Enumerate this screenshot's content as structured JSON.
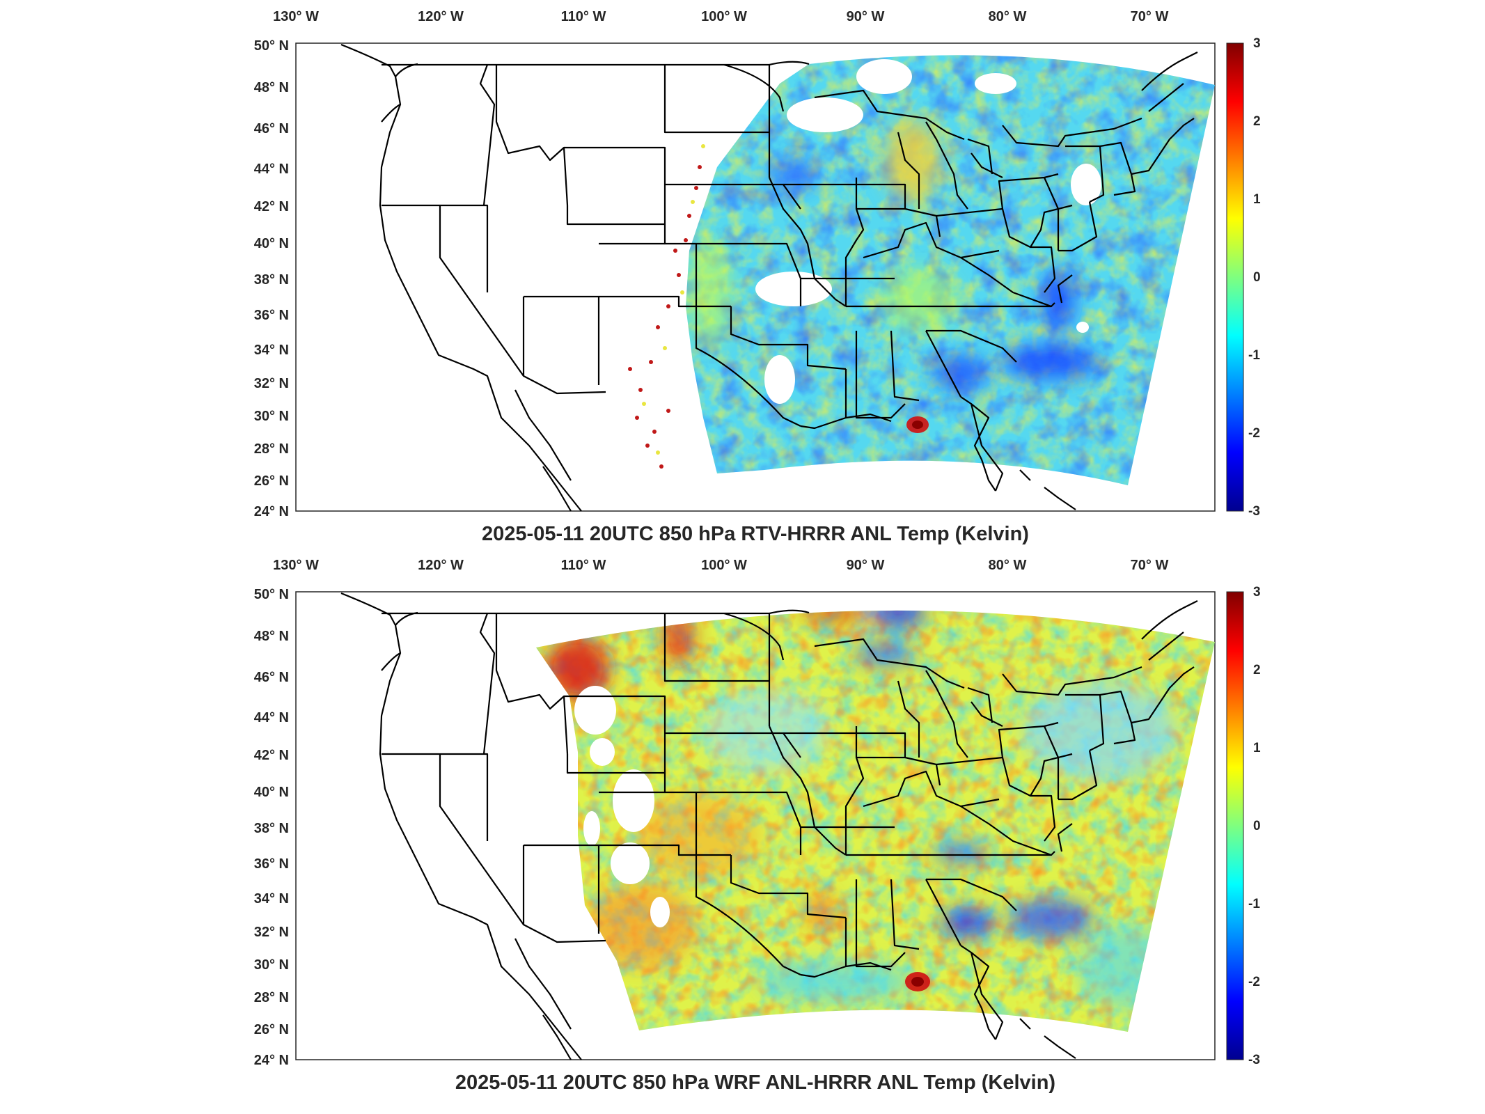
{
  "figure": {
    "colormap": "jet",
    "panels": [
      {
        "id": "top",
        "title": "2025-05-11 20UTC 850 hPa RTV-HRRR ANL Temp (Kelvin)",
        "lon_ticks": [
          "130° W",
          "120° W",
          "110° W",
          "100° W",
          "90° W",
          "80° W",
          "70° W"
        ],
        "lat_ticks": [
          "50° N",
          "48° N",
          "46° N",
          "44° N",
          "42° N",
          "40° N",
          "38° N",
          "36° N",
          "34° N",
          "32° N",
          "30° N",
          "28° N",
          "26° N",
          "24° N"
        ],
        "colorbar_ticks": [
          "3",
          "2",
          "1",
          "0",
          "-1",
          "-2",
          "-3"
        ],
        "colorbar_range": [
          -3,
          3
        ]
      },
      {
        "id": "bottom",
        "title": "2025-05-11 20UTC 850 hPa WRF ANL-HRRR ANL Temp (Kelvin)",
        "lon_ticks": [
          "130° W",
          "120° W",
          "110° W",
          "100° W",
          "90° W",
          "80° W",
          "70° W"
        ],
        "lat_ticks": [
          "50° N",
          "48° N",
          "46° N",
          "44° N",
          "42° N",
          "40° N",
          "38° N",
          "36° N",
          "34° N",
          "32° N",
          "30° N",
          "28° N",
          "26° N",
          "24° N"
        ],
        "colorbar_ticks": [
          "3",
          "2",
          "1",
          "0",
          "-1",
          "-2",
          "-3"
        ],
        "colorbar_range": [
          -3,
          3
        ]
      }
    ]
  }
}
